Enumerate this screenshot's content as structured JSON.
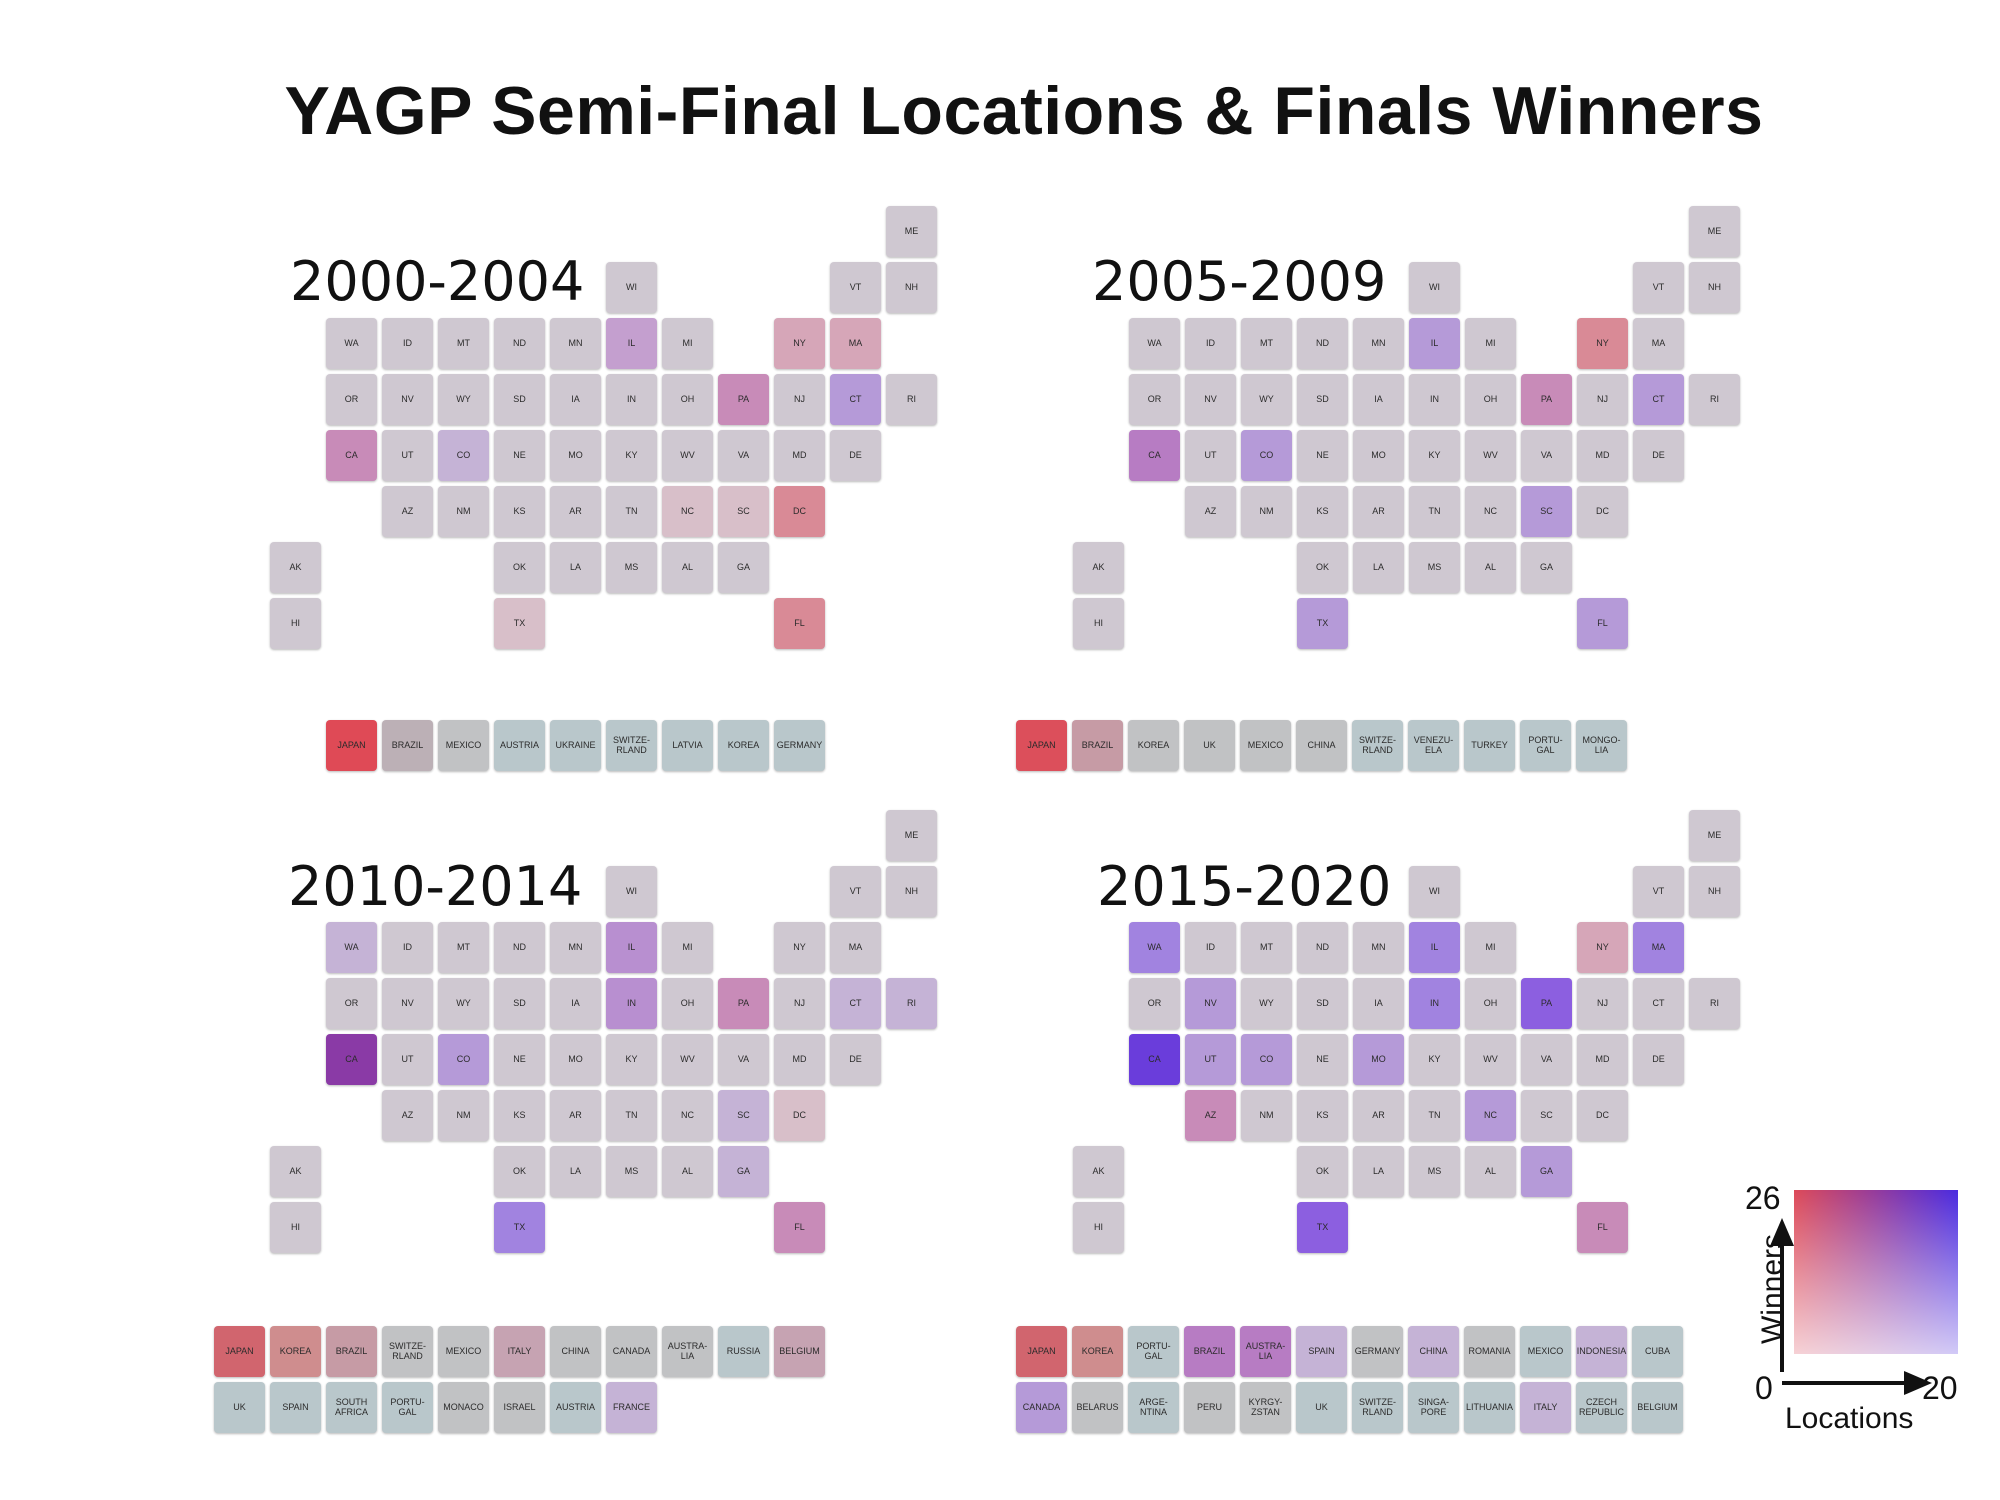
{
  "title": "YAGP Semi-Final Locations & Finals Winners",
  "us_states": [
    "ME",
    "WI",
    "VT",
    "NH",
    "WA",
    "ID",
    "MT",
    "ND",
    "MN",
    "IL",
    "MI",
    "NY",
    "MA",
    "OR",
    "NV",
    "WY",
    "SD",
    "IA",
    "IN",
    "OH",
    "PA",
    "NJ",
    "CT",
    "RI",
    "CA",
    "UT",
    "CO",
    "NE",
    "MO",
    "KY",
    "WV",
    "VA",
    "MD",
    "DE",
    "AZ",
    "NM",
    "KS",
    "AR",
    "TN",
    "NC",
    "SC",
    "DC",
    "AK",
    "OK",
    "LA",
    "MS",
    "AL",
    "GA",
    "HI",
    "TX",
    "FL"
  ],
  "palette": {
    "base": "#cfc8d1",
    "loc1": "#c5b3d6",
    "loc2": "#b59ad8",
    "loc3": "#a183e0",
    "loc4": "#8c5fe0",
    "loc5": "#6a3ddb",
    "win1": "#d8bfc9",
    "win2": "#d6a6b8",
    "win3": "#d98a96",
    "win4": "#dc5b63",
    "mix1": "#c88bb8",
    "mix2": "#b77cc3",
    "mix3": "#9a50b3",
    "mix4": "#8a3aa6",
    "country_base": "#b9c7cb",
    "country_grey": "#c1c2c4",
    "brazil1": "#bcb0b6",
    "brazil2": "#c69ba5",
    "brazil3": "#c6a3b2",
    "korea2": "#cf8d8e",
    "japan3": "#d1656e",
    "japan4": "#dc4f5b",
    "japan5": "#df4a56"
  },
  "panels": [
    {
      "period": "2000-2004",
      "colors": {
        "IL": "loc1x",
        "NY": "win2",
        "MA": "win2",
        "PA": "mix1",
        "CT": "loc2",
        "CA": "mix1",
        "CO": "loc1",
        "NC": "win1",
        "SC": "win1",
        "DC": "win3",
        "TX": "win1",
        "FL": "win3"
      },
      "countries": [
        [
          "JAPAN",
          "japan5"
        ],
        [
          "BRAZIL",
          "brazil1"
        ],
        [
          "MEXICO",
          "country_grey"
        ],
        [
          "AUSTRIA",
          "country_base"
        ],
        [
          "UKRAINE",
          "country_base"
        ],
        [
          "SWITZE-\nRLAND",
          "country_base"
        ],
        [
          "LATVIA",
          "country_base"
        ],
        [
          "KOREA",
          "country_base"
        ],
        [
          "GERMANY",
          "country_base"
        ]
      ]
    },
    {
      "period": "2005-2009",
      "colors": {
        "IL": "loc2",
        "NY": "win3",
        "PA": "mix1",
        "CT": "loc2",
        "CA": "mix2",
        "CO": "loc2",
        "SC": "loc2",
        "TX": "loc2",
        "FL": "loc2"
      },
      "countries": [
        [
          "JAPAN",
          "japan4"
        ],
        [
          "BRAZIL",
          "brazil2"
        ],
        [
          "KOREA",
          "country_grey"
        ],
        [
          "UK",
          "country_grey"
        ],
        [
          "MEXICO",
          "country_grey"
        ],
        [
          "CHINA",
          "country_grey"
        ],
        [
          "SWITZE-\nRLAND",
          "country_base"
        ],
        [
          "VENEZU-\nELA",
          "country_base"
        ],
        [
          "TURKEY",
          "country_base"
        ],
        [
          "PORTU-\nGAL",
          "country_base"
        ],
        [
          "MONGO-\nLIA",
          "country_base"
        ]
      ]
    },
    {
      "period": "2010-2014",
      "colors": {
        "WA": "loc1",
        "IL": "loc2x",
        "IN": "loc2x",
        "PA": "mix1",
        "CT": "loc1",
        "RI": "loc1",
        "CA": "mix4",
        "CO": "loc2",
        "SC": "loc1",
        "DC": "win1",
        "GA": "loc1",
        "TX": "loc3",
        "FL": "mix1"
      },
      "countries": [
        [
          "JAPAN",
          "japan3"
        ],
        [
          "KOREA",
          "korea2"
        ],
        [
          "BRAZIL",
          "brazil2"
        ],
        [
          "SWITZE-\nRLAND",
          "country_grey"
        ],
        [
          "MEXICO",
          "country_grey"
        ],
        [
          "ITALY",
          "brazil3"
        ],
        [
          "CHINA",
          "country_grey"
        ],
        [
          "CANADA",
          "country_grey"
        ],
        [
          "AUSTRA-\nLIA",
          "country_grey"
        ],
        [
          "RUSSIA",
          "country_base"
        ],
        [
          "BELGIUM",
          "brazil3"
        ],
        [
          "UK",
          "country_base"
        ],
        [
          "SPAIN",
          "country_base"
        ],
        [
          "SOUTH\nAFRICA",
          "country_base"
        ],
        [
          "PORTU-\nGAL",
          "country_base"
        ],
        [
          "MONACO",
          "country_grey"
        ],
        [
          "ISRAEL",
          "country_grey"
        ],
        [
          "AUSTRIA",
          "country_base"
        ],
        [
          "FRANCE",
          "loc1"
        ]
      ]
    },
    {
      "period": "2015-2020",
      "colors": {
        "WA": "loc3",
        "IL": "loc3",
        "NY": "win2",
        "MA": "loc3",
        "NV": "loc2",
        "IN": "loc3",
        "PA": "loc4",
        "CA": "loc5",
        "UT": "loc2",
        "CO": "loc2",
        "MO": "loc2",
        "AZ": "mix1",
        "NC": "loc2",
        "GA": "loc2",
        "TX": "loc4",
        "FL": "mix1"
      },
      "countries": [
        [
          "JAPAN",
          "japan3"
        ],
        [
          "KOREA",
          "korea2"
        ],
        [
          "PORTU-\nGAL",
          "country_base"
        ],
        [
          "BRAZIL",
          "mix2"
        ],
        [
          "AUSTRA-\nLIA",
          "mix2"
        ],
        [
          "SPAIN",
          "loc1"
        ],
        [
          "GERMANY",
          "country_grey"
        ],
        [
          "CHINA",
          "loc1"
        ],
        [
          "ROMANIA",
          "country_grey"
        ],
        [
          "MEXICO",
          "country_base"
        ],
        [
          "INDONESIA",
          "loc1"
        ],
        [
          "CUBA",
          "country_base"
        ],
        [
          "CANADA",
          "loc2"
        ],
        [
          "BELARUS",
          "country_grey"
        ],
        [
          "ARGE-\nNTINA",
          "country_base"
        ],
        [
          "PERU",
          "country_grey"
        ],
        [
          "KYRGY-\nZSTAN",
          "country_grey"
        ],
        [
          "UK",
          "country_base"
        ],
        [
          "SWITZE-\nRLAND",
          "country_base"
        ],
        [
          "SINGA-\nPORE",
          "country_base"
        ],
        [
          "LITHUANIA",
          "country_base"
        ],
        [
          "ITALY",
          "loc1"
        ],
        [
          "CZECH\nREPUBLIC",
          "country_base"
        ],
        [
          "BELGIUM",
          "country_base"
        ]
      ]
    }
  ],
  "legend": {
    "y_label": "Winners",
    "x_label": "Locations",
    "y_max": "26",
    "x_max": "20",
    "origin": "0"
  }
}
